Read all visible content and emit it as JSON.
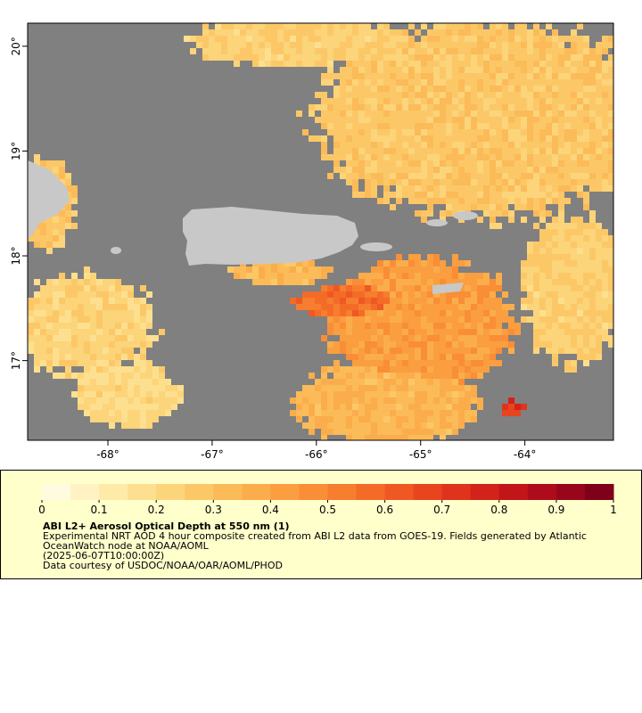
{
  "map": {
    "xlim": [
      -68.77,
      -63.15
    ],
    "ylim": [
      16.24,
      20.22
    ],
    "xticks": [
      {
        "value": -68,
        "label": "-68°"
      },
      {
        "value": -67,
        "label": "-67°"
      },
      {
        "value": -66,
        "label": "-66°"
      },
      {
        "value": -65,
        "label": "-65°"
      },
      {
        "value": -64,
        "label": "-64°"
      }
    ],
    "yticks": [
      {
        "value": 17,
        "label": "17°"
      },
      {
        "value": 18,
        "label": "18°"
      },
      {
        "value": 19,
        "label": "19°"
      },
      {
        "value": 20,
        "label": "20°"
      }
    ]
  },
  "legend": {
    "colorbar": {
      "lim": [
        0,
        1
      ],
      "ticks": [
        0,
        0.1,
        0.2,
        0.3,
        0.4,
        0.5,
        0.6,
        0.7,
        0.8,
        0.9,
        1
      ],
      "colors": [
        "#fffbe0",
        "#fff3c4",
        "#ffeaa8",
        "#fde08f",
        "#fcd47a",
        "#fcc867",
        "#fbbb58",
        "#fbad4b",
        "#fa9e40",
        "#f98e36",
        "#f77d2f",
        "#f46b28",
        "#ef5823",
        "#e8451f",
        "#df331c",
        "#d2221a",
        "#c21519",
        "#ae0c1a",
        "#98061b",
        "#7f0019"
      ]
    },
    "title": "ABI L2+ Aerosol Optical Depth at 550 nm (1)",
    "lines": [
      "Experimental NRT AOD 4 hour composite created from ABI L2 data from GOES-19. Fields generated by Atlantic",
      "OceanWatch node at NOAA/AOML",
      "(2025-06-07T10:00:00Z)",
      "Data courtesy of USDOC/NOAA/OAR/AOML/PHOD"
    ]
  }
}
